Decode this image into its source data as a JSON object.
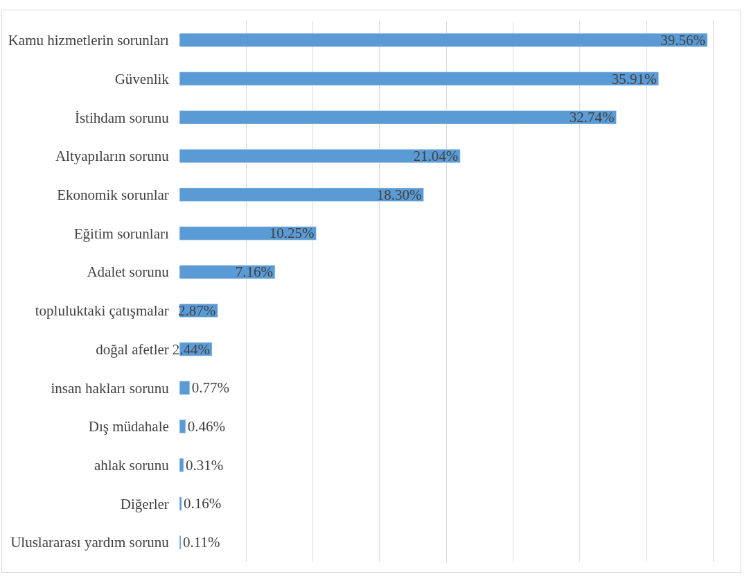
{
  "chart_data": {
    "type": "bar",
    "orientation": "horizontal",
    "categories": [
      "Kamu hizmetlerin sorunları",
      "Güvenlik",
      "İstihdam sorunu",
      "Altyapıların sorunu",
      "Ekonomik sorunlar",
      "Eğitim sorunları",
      "Adalet sorunu",
      "topluluktaki çatışmalar",
      "doğal afetler",
      "insan hakları sorunu",
      "Dış müdahale",
      "ahlak sorunu",
      "Diğerler",
      "Uluslararası yardım sorunu"
    ],
    "values": [
      39.56,
      35.91,
      32.74,
      21.04,
      18.3,
      10.25,
      7.16,
      2.87,
      2.44,
      0.77,
      0.46,
      0.31,
      0.16,
      0.11
    ],
    "value_labels": [
      "39.56%",
      "35.91%",
      "32.74%",
      "21.04%",
      "18.30%",
      "10.25%",
      "7.16%",
      "2.87%",
      "2.44%",
      "0.77%",
      "0.46%",
      "0.31%",
      "0.16%",
      "0.11%"
    ],
    "color": "#5b9bd5",
    "tick_labels": "y",
    "grid": "x",
    "legend": false
  }
}
